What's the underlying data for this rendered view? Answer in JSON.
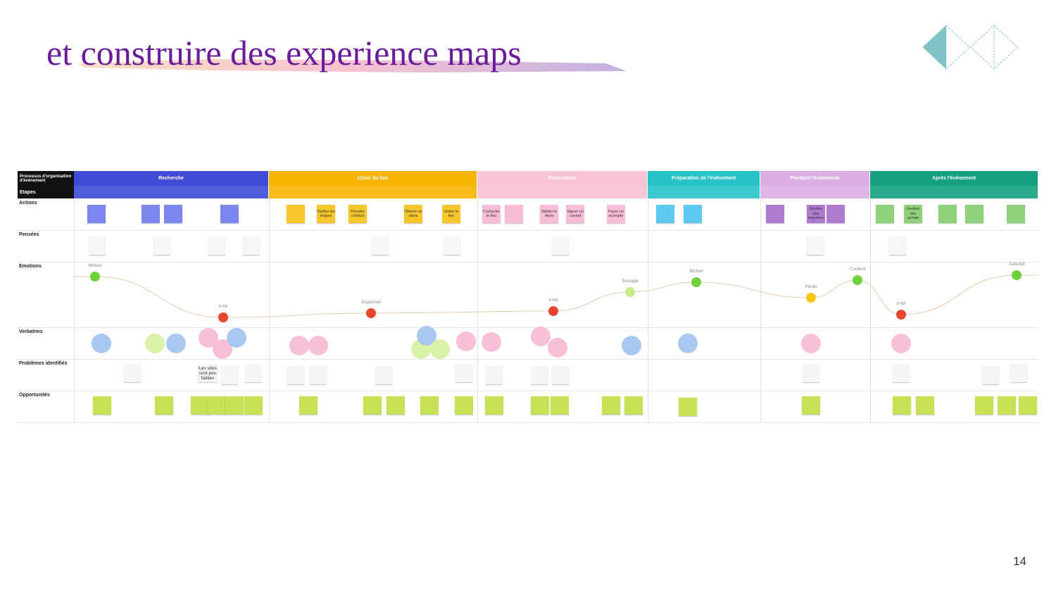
{
  "title": "et construire des experience maps",
  "page_number": "14",
  "map": {
    "corner": "Processus d'organisation d'événement",
    "steps_label": "Etapes",
    "phases": [
      {
        "name": "Recherche",
        "color": "#3f4bd6"
      },
      {
        "name": "Choix du lieu",
        "color": "#f6b400"
      },
      {
        "name": "Réservation",
        "color": "#f8c3d6"
      },
      {
        "name": "Préparation de l'événement",
        "color": "#27c3c7"
      },
      {
        "name": "Pendant l'événement",
        "color": "#dcaee6"
      },
      {
        "name": "Après l'événement",
        "color": "#14a07e"
      }
    ],
    "rows": [
      "Actions",
      "Pensées",
      "Emotions",
      "Verbatims",
      "Problèmes identifiés",
      "Opportunités"
    ],
    "emotions": [
      "Motivé",
      "Irrité",
      "Insatisfait",
      "Irrité",
      "Soulagé",
      "Motivé",
      "Perdu",
      "Content",
      "Irrité",
      "Satisfait"
    ],
    "actions": [
      "Vérifier les étapes",
      "Prendre contact",
      "Obtenir un devis",
      "Visiter le lieu",
      "Contacter le lieu",
      "Valider le devis",
      "Signer un contrat",
      "Payer un acompte",
      "Gestion des imprévus",
      "Gestion des achats"
    ],
    "problems": [
      "Les sites sont peu fiables"
    ]
  }
}
